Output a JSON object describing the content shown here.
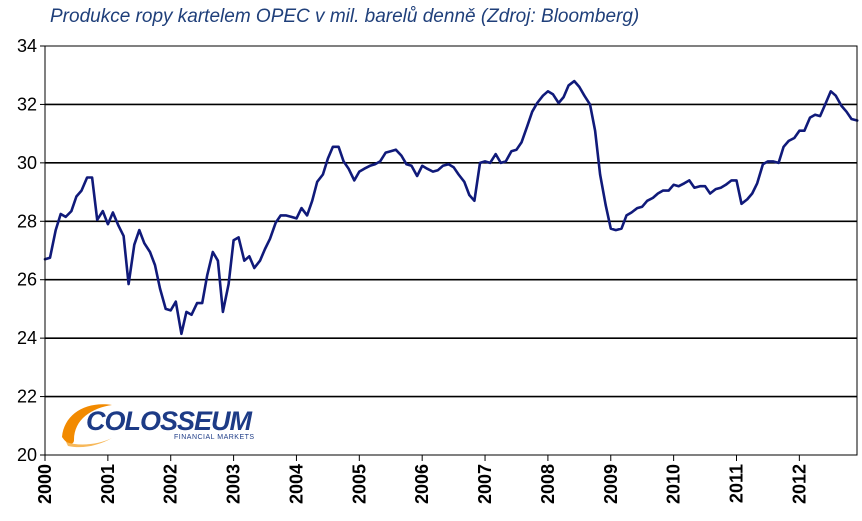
{
  "chart_data": {
    "type": "line",
    "title": "Produkce ropy kartelem OPEC v mil. barelů denně (Zdroj: Bloomberg)",
    "xlabel": "",
    "ylabel": "",
    "ylim": [
      20,
      34
    ],
    "yticks": [
      20,
      22,
      24,
      26,
      28,
      30,
      32,
      34
    ],
    "xlim": [
      2000,
      2012.917
    ],
    "xticks": [
      "2000",
      "2001",
      "2002",
      "2003",
      "2004",
      "2005",
      "2006",
      "2007",
      "2008",
      "2009",
      "2010",
      "2011",
      "2012"
    ],
    "grid": true,
    "legend": "none",
    "line_color": "#101a7a",
    "series": [
      {
        "name": "",
        "x": [
          2000.0,
          2000.08,
          2000.17,
          2000.25,
          2000.33,
          2000.42,
          2000.5,
          2000.58,
          2000.67,
          2000.75,
          2000.83,
          2000.92,
          2001.0,
          2001.08,
          2001.17,
          2001.25,
          2001.33,
          2001.42,
          2001.5,
          2001.58,
          2001.67,
          2001.75,
          2001.83,
          2001.92,
          2002.0,
          2002.08,
          2002.17,
          2002.25,
          2002.33,
          2002.42,
          2002.5,
          2002.58,
          2002.67,
          2002.75,
          2002.83,
          2002.92,
          2003.0,
          2003.08,
          2003.17,
          2003.25,
          2003.33,
          2003.42,
          2003.5,
          2003.58,
          2003.67,
          2003.75,
          2003.83,
          2003.92,
          2004.0,
          2004.08,
          2004.17,
          2004.25,
          2004.33,
          2004.42,
          2004.5,
          2004.58,
          2004.67,
          2004.75,
          2004.83,
          2004.92,
          2005.0,
          2005.08,
          2005.17,
          2005.25,
          2005.33,
          2005.42,
          2005.5,
          2005.58,
          2005.67,
          2005.75,
          2005.83,
          2005.92,
          2006.0,
          2006.08,
          2006.17,
          2006.25,
          2006.33,
          2006.42,
          2006.5,
          2006.58,
          2006.67,
          2006.75,
          2006.83,
          2006.92,
          2007.0,
          2007.08,
          2007.17,
          2007.25,
          2007.33,
          2007.42,
          2007.5,
          2007.58,
          2007.67,
          2007.75,
          2007.83,
          2007.92,
          2008.0,
          2008.08,
          2008.17,
          2008.25,
          2008.33,
          2008.42,
          2008.5,
          2008.58,
          2008.67,
          2008.75,
          2008.83,
          2008.92,
          2009.0,
          2009.08,
          2009.17,
          2009.25,
          2009.33,
          2009.42,
          2009.5,
          2009.58,
          2009.67,
          2009.75,
          2009.83,
          2009.92,
          2010.0,
          2010.08,
          2010.17,
          2010.25,
          2010.33,
          2010.42,
          2010.5,
          2010.58,
          2010.67,
          2010.75,
          2010.83,
          2010.92,
          2011.0,
          2011.08,
          2011.17,
          2011.25,
          2011.33,
          2011.42,
          2011.5,
          2011.58,
          2011.67,
          2011.75,
          2011.83,
          2011.92,
          2012.0,
          2012.08,
          2012.17,
          2012.25,
          2012.33,
          2012.42,
          2012.5,
          2012.58,
          2012.67,
          2012.75,
          2012.83,
          2012.92
        ],
        "values": [
          26.7,
          26.75,
          27.7,
          28.25,
          28.15,
          28.35,
          28.85,
          29.05,
          29.5,
          29.5,
          28.05,
          28.35,
          27.9,
          28.3,
          27.85,
          27.5,
          25.85,
          27.2,
          27.7,
          27.25,
          26.95,
          26.5,
          25.7,
          25.0,
          24.95,
          25.25,
          24.15,
          24.9,
          24.8,
          25.2,
          25.2,
          26.15,
          26.95,
          26.65,
          24.9,
          25.85,
          27.35,
          27.45,
          26.65,
          26.8,
          26.4,
          26.65,
          27.05,
          27.4,
          27.95,
          28.2,
          28.2,
          28.15,
          28.1,
          28.45,
          28.2,
          28.7,
          29.35,
          29.6,
          30.15,
          30.55,
          30.55,
          30.05,
          29.8,
          29.4,
          29.7,
          29.8,
          29.9,
          29.95,
          30.05,
          30.35,
          30.4,
          30.45,
          30.25,
          29.95,
          29.9,
          29.55,
          29.9,
          29.8,
          29.7,
          29.75,
          29.9,
          29.95,
          29.85,
          29.6,
          29.35,
          28.9,
          28.7,
          30.0,
          30.05,
          30.0,
          30.3,
          30.0,
          30.05,
          30.4,
          30.45,
          30.7,
          31.25,
          31.75,
          32.05,
          32.3,
          32.45,
          32.35,
          32.05,
          32.25,
          32.65,
          32.8,
          32.6,
          32.3,
          32.0,
          31.1,
          29.6,
          28.55,
          27.75,
          27.7,
          27.75,
          28.2,
          28.3,
          28.45,
          28.5,
          28.7,
          28.8,
          28.95,
          29.05,
          29.05,
          29.25,
          29.2,
          29.3,
          29.4,
          29.15,
          29.2,
          29.2,
          28.95,
          29.1,
          29.15,
          29.25,
          29.4,
          29.4,
          28.6,
          28.75,
          28.95,
          29.3,
          29.95,
          30.05,
          30.05,
          30.0,
          30.55,
          30.75,
          30.85,
          31.1,
          31.1,
          31.55,
          31.65,
          31.6,
          32.05,
          32.45,
          32.3,
          31.95,
          31.75,
          31.5,
          31.45
        ]
      }
    ]
  },
  "logo": {
    "name": "COLOSSEUM",
    "tagline": "FINANCIAL MARKETS",
    "colors": {
      "text": "#1d3b86",
      "swoosh": "#f28a00"
    }
  }
}
